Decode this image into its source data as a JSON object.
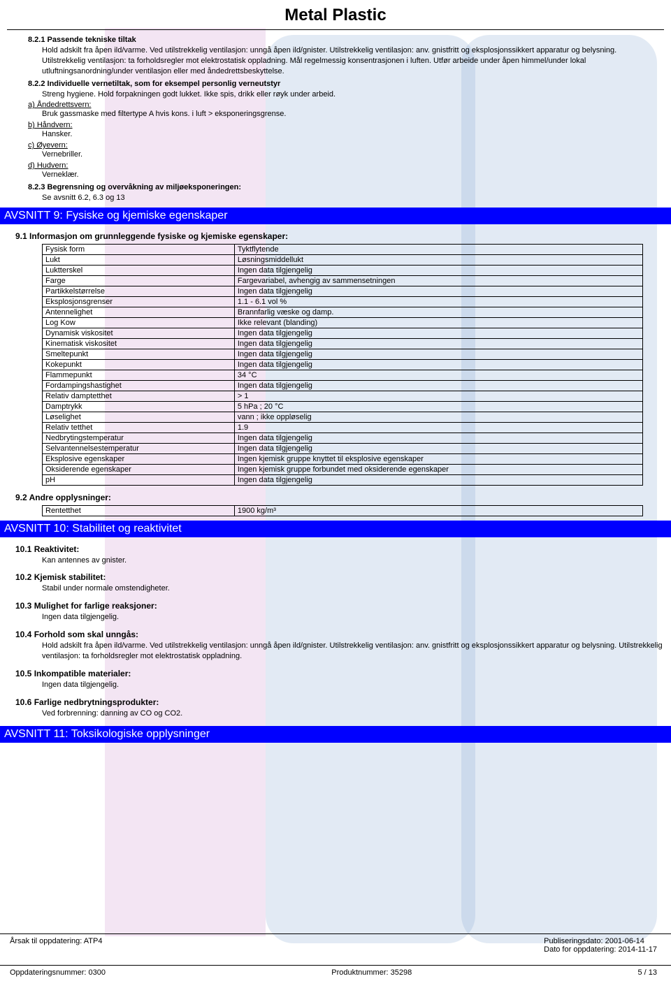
{
  "page": {
    "title": "Metal Plastic",
    "colors": {
      "section_bar_bg": "#0000ff",
      "section_bar_fg": "#ffffff",
      "border": "#000000"
    }
  },
  "s821": {
    "heading": "8.2.1 Passende tekniske tiltak",
    "body": "Hold adskilt fra åpen ild/varme. Ved utilstrekkelig ventilasjon: unngå åpen ild/gnister. Utilstrekkelig ventilasjon: anv. gnistfritt og eksplosjonssikkert apparatur og belysning. Utilstrekkelig ventilasjon: ta forholdsregler mot elektrostatisk oppladning. Mål regelmessig konsentrasjonen i luften. Utfør arbeide under åpen himmel/under lokal utluftningsanordning/under ventilasjon eller med åndedrettsbeskyttelse."
  },
  "s822": {
    "heading": "8.2.2 Individuelle vernetiltak, som for eksempel personlig verneutstyr",
    "intro": "Streng hygiene. Hold forpakningen godt lukket. Ikke spis, drikk eller røyk under arbeid.",
    "a_label": "a) Åndedrettsvern:",
    "a_body": "Bruk gassmaske med filtertype A hvis kons. i luft > eksponeringsgrense.",
    "b_label": "b) Håndvern:",
    "b_body": "Hansker.",
    "c_label": "c) Øyevern:",
    "c_body": "Vernebriller.",
    "d_label": "d) Hudvern:",
    "d_body": "Verneklær."
  },
  "s823": {
    "heading": "8.2.3 Begrensning og overvåkning av miljøeksponeringen:",
    "body": "Se avsnitt 6.2, 6.3 og 13"
  },
  "section9": {
    "title": "AVSNITT 9: Fysiske og kjemiske egenskaper",
    "sub91": "9.1 Informasjon om grunnleggende fysiske og kjemiske egenskaper:",
    "rows": [
      {
        "k": "Fysisk form",
        "v": "Tyktflytende"
      },
      {
        "k": "Lukt",
        "v": "Løsningsmiddellukt"
      },
      {
        "k": "Luktterskel",
        "v": "Ingen data tilgjengelig"
      },
      {
        "k": "Farge",
        "v": "Fargevariabel, avhengig av sammensetningen"
      },
      {
        "k": "Partikkelstørrelse",
        "v": "Ingen data tilgjengelig"
      },
      {
        "k": "Eksplosjonsgrenser",
        "v": "1.1 - 6.1 vol %"
      },
      {
        "k": "Antennelighet",
        "v": "Brannfarlig væske og damp."
      },
      {
        "k": "Log Kow",
        "v": "Ikke relevant (blanding)"
      },
      {
        "k": "Dynamisk viskositet",
        "v": "Ingen data tilgjengelig"
      },
      {
        "k": "Kinematisk viskositet",
        "v": "Ingen data tilgjengelig"
      },
      {
        "k": "Smeltepunkt",
        "v": "Ingen data tilgjengelig"
      },
      {
        "k": "Kokepunkt",
        "v": "Ingen data tilgjengelig"
      },
      {
        "k": "Flammepunkt",
        "v": "34 °C"
      },
      {
        "k": "Fordampingshastighet",
        "v": "Ingen data tilgjengelig"
      },
      {
        "k": "Relativ damptetthet",
        "v": "> 1"
      },
      {
        "k": "Damptrykk",
        "v": "5 hPa ; 20 °C"
      },
      {
        "k": "Løselighet",
        "v": "vann ; ikke oppløselig"
      },
      {
        "k": "Relativ tetthet",
        "v": "1.9"
      },
      {
        "k": "Nedbrytingstemperatur",
        "v": "Ingen data tilgjengelig"
      },
      {
        "k": "Selvantennelsestemperatur",
        "v": "Ingen data tilgjengelig"
      },
      {
        "k": "Eksplosive egenskaper",
        "v": "Ingen kjemisk gruppe knyttet til eksplosive egenskaper"
      },
      {
        "k": "Oksiderende egenskaper",
        "v": "Ingen kjemisk gruppe forbundet med oksiderende egenskaper"
      },
      {
        "k": "pH",
        "v": "Ingen data tilgjengelig"
      }
    ],
    "sub92": "9.2 Andre opplysninger:",
    "rows92": [
      {
        "k": "Rentetthet",
        "v": "1900 kg/m³"
      }
    ]
  },
  "section10": {
    "title": "AVSNITT 10: Stabilitet og reaktivitet",
    "s101h": "10.1 Reaktivitet:",
    "s101b": "Kan antennes av gnister.",
    "s102h": "10.2 Kjemisk stabilitet:",
    "s102b": "Stabil under normale omstendigheter.",
    "s103h": "10.3 Mulighet for farlige reaksjoner:",
    "s103b": "Ingen data tilgjengelig.",
    "s104h": "10.4 Forhold som skal unngås:",
    "s104b": "Hold adskilt fra åpen ild/varme. Ved utilstrekkelig ventilasjon: unngå åpen ild/gnister. Utilstrekkelig ventilasjon: anv. gnistfritt og eksplosjonssikkert apparatur og belysning. Utilstrekkelig ventilasjon: ta forholdsregler mot elektrostatisk oppladning.",
    "s105h": "10.5 Inkompatible materialer:",
    "s105b": "Ingen data tilgjengelig.",
    "s106h": "10.6 Farlige nedbrytningsprodukter:",
    "s106b": "Ved forbrenning: danning av CO og CO2."
  },
  "section11": {
    "title": "AVSNITT 11: Toksikologiske opplysninger"
  },
  "footer": {
    "reason": "Årsak til oppdatering: ATP4",
    "pubdate": "Publiseringsdato: 2001-06-14",
    "upddate": "Dato for oppdatering: 2014-11-17",
    "updnum": "Oppdateringsnummer: 0300",
    "prodnum": "Produktnummer: 35298",
    "pagenum": "5 / 13"
  }
}
